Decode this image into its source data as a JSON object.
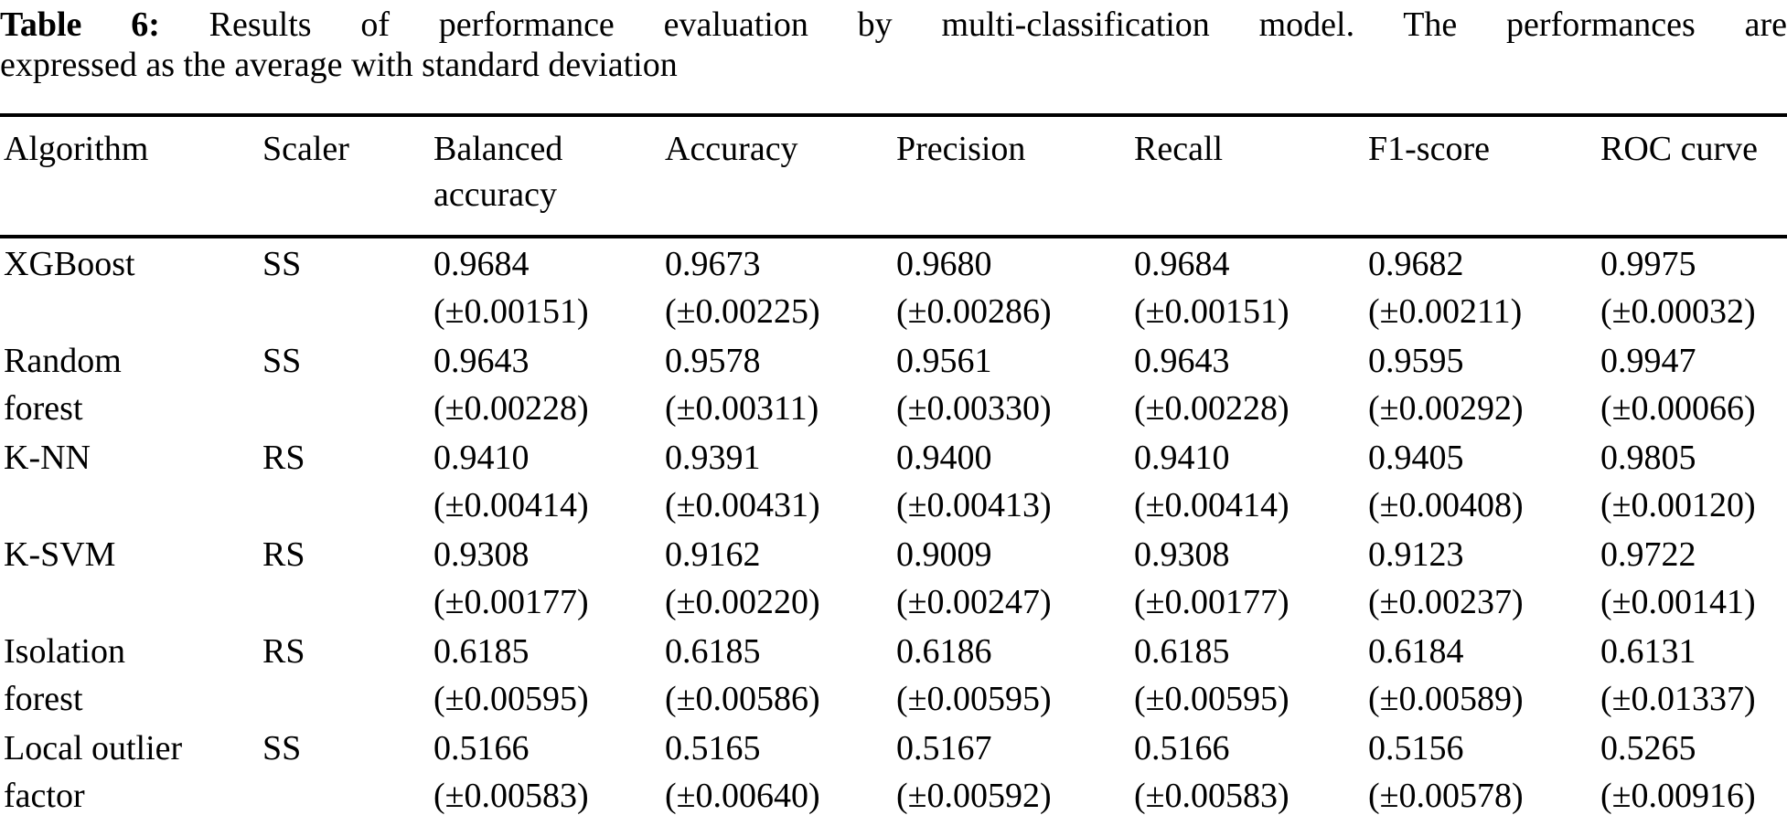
{
  "caption": {
    "label": "Table 6:",
    "line1_rest": "Results of performance evaluation by multi-classification model. The performances are",
    "line2": "expressed as the average with standard deviation"
  },
  "table": {
    "header": [
      {
        "line1": "Algorithm",
        "line2": ""
      },
      {
        "line1": "Scaler",
        "line2": ""
      },
      {
        "line1": "Balanced",
        "line2": "accuracy"
      },
      {
        "line1": "Accuracy",
        "line2": ""
      },
      {
        "line1": "Precision",
        "line2": ""
      },
      {
        "line1": "Recall",
        "line2": ""
      },
      {
        "line1": "F1-score",
        "line2": ""
      },
      {
        "line1": "ROC curve",
        "line2": ""
      }
    ],
    "rows": [
      {
        "name_line1": "XGBoost",
        "name_line2": "",
        "scaler": "SS",
        "balanced_accuracy": {
          "mean": "0.9684",
          "std": "(±0.00151)"
        },
        "accuracy": {
          "mean": "0.9673",
          "std": "(±0.00225)"
        },
        "precision": {
          "mean": "0.9680",
          "std": "(±0.00286)"
        },
        "recall": {
          "mean": "0.9684",
          "std": "(±0.00151)"
        },
        "f1_score": {
          "mean": "0.9682",
          "std": "(±0.00211)"
        },
        "roc_curve": {
          "mean": "0.9975",
          "std": "(±0.00032)"
        }
      },
      {
        "name_line1": "Random",
        "name_line2": "forest",
        "scaler": "SS",
        "balanced_accuracy": {
          "mean": "0.9643",
          "std": "(±0.00228)"
        },
        "accuracy": {
          "mean": "0.9578",
          "std": "(±0.00311)"
        },
        "precision": {
          "mean": "0.9561",
          "std": "(±0.00330)"
        },
        "recall": {
          "mean": "0.9643",
          "std": "(±0.00228)"
        },
        "f1_score": {
          "mean": "0.9595",
          "std": "(±0.00292)"
        },
        "roc_curve": {
          "mean": "0.9947",
          "std": "(±0.00066)"
        }
      },
      {
        "name_line1": "K-NN",
        "name_line2": "",
        "scaler": "RS",
        "balanced_accuracy": {
          "mean": "0.9410",
          "std": "(±0.00414)"
        },
        "accuracy": {
          "mean": "0.9391",
          "std": "(±0.00431)"
        },
        "precision": {
          "mean": "0.9400",
          "std": "(±0.00413)"
        },
        "recall": {
          "mean": "0.9410",
          "std": "(±0.00414)"
        },
        "f1_score": {
          "mean": "0.9405",
          "std": "(±0.00408)"
        },
        "roc_curve": {
          "mean": "0.9805",
          "std": "(±0.00120)"
        }
      },
      {
        "name_line1": "K-SVM",
        "name_line2": "",
        "scaler": "RS",
        "balanced_accuracy": {
          "mean": "0.9308",
          "std": "(±0.00177)"
        },
        "accuracy": {
          "mean": "0.9162",
          "std": "(±0.00220)"
        },
        "precision": {
          "mean": "0.9009",
          "std": "(±0.00247)"
        },
        "recall": {
          "mean": "0.9308",
          "std": "(±0.00177)"
        },
        "f1_score": {
          "mean": "0.9123",
          "std": "(±0.00237)"
        },
        "roc_curve": {
          "mean": "0.9722",
          "std": "(±0.00141)"
        }
      },
      {
        "name_line1": "Isolation",
        "name_line2": "forest",
        "scaler": "RS",
        "balanced_accuracy": {
          "mean": "0.6185",
          "std": "(±0.00595)"
        },
        "accuracy": {
          "mean": "0.6185",
          "std": "(±0.00586)"
        },
        "precision": {
          "mean": "0.6186",
          "std": "(±0.00595)"
        },
        "recall": {
          "mean": "0.6185",
          "std": "(±0.00595)"
        },
        "f1_score": {
          "mean": "0.6184",
          "std": "(±0.00589)"
        },
        "roc_curve": {
          "mean": "0.6131",
          "std": "(±0.01337)"
        }
      },
      {
        "name_line1": "Local outlier",
        "name_line2": "factor",
        "scaler": "SS",
        "balanced_accuracy": {
          "mean": "0.5166",
          "std": "(±0.00583)"
        },
        "accuracy": {
          "mean": "0.5165",
          "std": "(±0.00640)"
        },
        "precision": {
          "mean": "0.5167",
          "std": "(±0.00592)"
        },
        "recall": {
          "mean": "0.5166",
          "std": "(±0.00583)"
        },
        "f1_score": {
          "mean": "0.5156",
          "std": "(±0.00578)"
        },
        "roc_curve": {
          "mean": "0.5265",
          "std": "(±0.00916)"
        }
      }
    ]
  }
}
